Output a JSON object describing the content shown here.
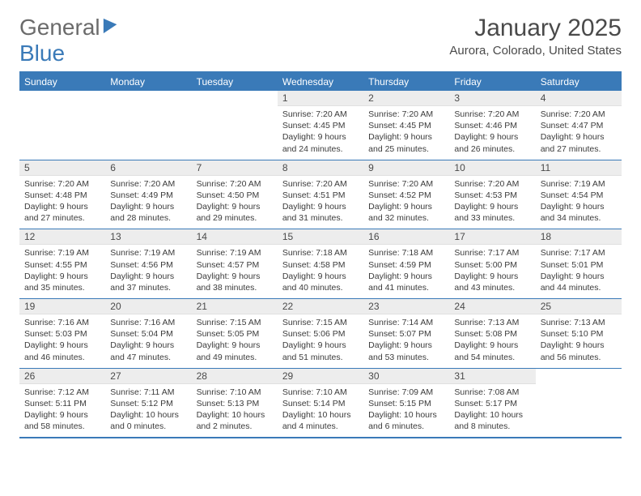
{
  "brand": {
    "part1": "General",
    "part2": "Blue"
  },
  "title": "January 2025",
  "location": "Aurora, Colorado, United States",
  "colors": {
    "accent": "#3a7ab8",
    "header_bg": "#3a7ab8",
    "daynum_bg": "#ededed",
    "text": "#4a4a4a",
    "body_text": "#3b3b3b"
  },
  "day_names": [
    "Sunday",
    "Monday",
    "Tuesday",
    "Wednesday",
    "Thursday",
    "Friday",
    "Saturday"
  ],
  "weeks": [
    [
      {
        "n": "",
        "lines": []
      },
      {
        "n": "",
        "lines": []
      },
      {
        "n": "",
        "lines": []
      },
      {
        "n": "1",
        "lines": [
          "Sunrise: 7:20 AM",
          "Sunset: 4:45 PM",
          "Daylight: 9 hours and 24 minutes."
        ]
      },
      {
        "n": "2",
        "lines": [
          "Sunrise: 7:20 AM",
          "Sunset: 4:45 PM",
          "Daylight: 9 hours and 25 minutes."
        ]
      },
      {
        "n": "3",
        "lines": [
          "Sunrise: 7:20 AM",
          "Sunset: 4:46 PM",
          "Daylight: 9 hours and 26 minutes."
        ]
      },
      {
        "n": "4",
        "lines": [
          "Sunrise: 7:20 AM",
          "Sunset: 4:47 PM",
          "Daylight: 9 hours and 27 minutes."
        ]
      }
    ],
    [
      {
        "n": "5",
        "lines": [
          "Sunrise: 7:20 AM",
          "Sunset: 4:48 PM",
          "Daylight: 9 hours and 27 minutes."
        ]
      },
      {
        "n": "6",
        "lines": [
          "Sunrise: 7:20 AM",
          "Sunset: 4:49 PM",
          "Daylight: 9 hours and 28 minutes."
        ]
      },
      {
        "n": "7",
        "lines": [
          "Sunrise: 7:20 AM",
          "Sunset: 4:50 PM",
          "Daylight: 9 hours and 29 minutes."
        ]
      },
      {
        "n": "8",
        "lines": [
          "Sunrise: 7:20 AM",
          "Sunset: 4:51 PM",
          "Daylight: 9 hours and 31 minutes."
        ]
      },
      {
        "n": "9",
        "lines": [
          "Sunrise: 7:20 AM",
          "Sunset: 4:52 PM",
          "Daylight: 9 hours and 32 minutes."
        ]
      },
      {
        "n": "10",
        "lines": [
          "Sunrise: 7:20 AM",
          "Sunset: 4:53 PM",
          "Daylight: 9 hours and 33 minutes."
        ]
      },
      {
        "n": "11",
        "lines": [
          "Sunrise: 7:19 AM",
          "Sunset: 4:54 PM",
          "Daylight: 9 hours and 34 minutes."
        ]
      }
    ],
    [
      {
        "n": "12",
        "lines": [
          "Sunrise: 7:19 AM",
          "Sunset: 4:55 PM",
          "Daylight: 9 hours and 35 minutes."
        ]
      },
      {
        "n": "13",
        "lines": [
          "Sunrise: 7:19 AM",
          "Sunset: 4:56 PM",
          "Daylight: 9 hours and 37 minutes."
        ]
      },
      {
        "n": "14",
        "lines": [
          "Sunrise: 7:19 AM",
          "Sunset: 4:57 PM",
          "Daylight: 9 hours and 38 minutes."
        ]
      },
      {
        "n": "15",
        "lines": [
          "Sunrise: 7:18 AM",
          "Sunset: 4:58 PM",
          "Daylight: 9 hours and 40 minutes."
        ]
      },
      {
        "n": "16",
        "lines": [
          "Sunrise: 7:18 AM",
          "Sunset: 4:59 PM",
          "Daylight: 9 hours and 41 minutes."
        ]
      },
      {
        "n": "17",
        "lines": [
          "Sunrise: 7:17 AM",
          "Sunset: 5:00 PM",
          "Daylight: 9 hours and 43 minutes."
        ]
      },
      {
        "n": "18",
        "lines": [
          "Sunrise: 7:17 AM",
          "Sunset: 5:01 PM",
          "Daylight: 9 hours and 44 minutes."
        ]
      }
    ],
    [
      {
        "n": "19",
        "lines": [
          "Sunrise: 7:16 AM",
          "Sunset: 5:03 PM",
          "Daylight: 9 hours and 46 minutes."
        ]
      },
      {
        "n": "20",
        "lines": [
          "Sunrise: 7:16 AM",
          "Sunset: 5:04 PM",
          "Daylight: 9 hours and 47 minutes."
        ]
      },
      {
        "n": "21",
        "lines": [
          "Sunrise: 7:15 AM",
          "Sunset: 5:05 PM",
          "Daylight: 9 hours and 49 minutes."
        ]
      },
      {
        "n": "22",
        "lines": [
          "Sunrise: 7:15 AM",
          "Sunset: 5:06 PM",
          "Daylight: 9 hours and 51 minutes."
        ]
      },
      {
        "n": "23",
        "lines": [
          "Sunrise: 7:14 AM",
          "Sunset: 5:07 PM",
          "Daylight: 9 hours and 53 minutes."
        ]
      },
      {
        "n": "24",
        "lines": [
          "Sunrise: 7:13 AM",
          "Sunset: 5:08 PM",
          "Daylight: 9 hours and 54 minutes."
        ]
      },
      {
        "n": "25",
        "lines": [
          "Sunrise: 7:13 AM",
          "Sunset: 5:10 PM",
          "Daylight: 9 hours and 56 minutes."
        ]
      }
    ],
    [
      {
        "n": "26",
        "lines": [
          "Sunrise: 7:12 AM",
          "Sunset: 5:11 PM",
          "Daylight: 9 hours and 58 minutes."
        ]
      },
      {
        "n": "27",
        "lines": [
          "Sunrise: 7:11 AM",
          "Sunset: 5:12 PM",
          "Daylight: 10 hours and 0 minutes."
        ]
      },
      {
        "n": "28",
        "lines": [
          "Sunrise: 7:10 AM",
          "Sunset: 5:13 PM",
          "Daylight: 10 hours and 2 minutes."
        ]
      },
      {
        "n": "29",
        "lines": [
          "Sunrise: 7:10 AM",
          "Sunset: 5:14 PM",
          "Daylight: 10 hours and 4 minutes."
        ]
      },
      {
        "n": "30",
        "lines": [
          "Sunrise: 7:09 AM",
          "Sunset: 5:15 PM",
          "Daylight: 10 hours and 6 minutes."
        ]
      },
      {
        "n": "31",
        "lines": [
          "Sunrise: 7:08 AM",
          "Sunset: 5:17 PM",
          "Daylight: 10 hours and 8 minutes."
        ]
      },
      {
        "n": "",
        "lines": []
      }
    ]
  ]
}
